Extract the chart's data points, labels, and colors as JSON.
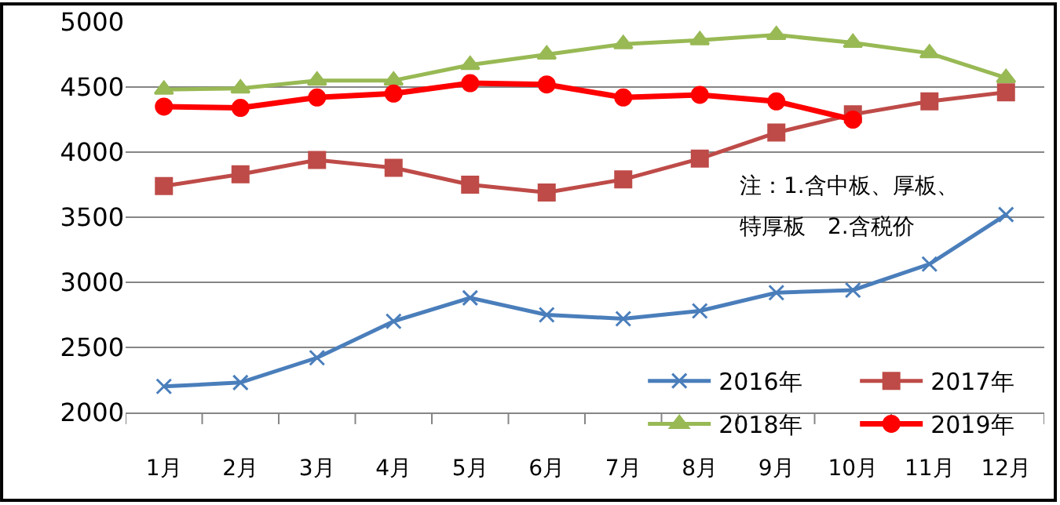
{
  "chart_data": {
    "type": "line",
    "categories": [
      "1月",
      "2月",
      "3月",
      "4月",
      "5月",
      "6月",
      "7月",
      "8月",
      "9月",
      "10月",
      "11月",
      "12月"
    ],
    "series": [
      {
        "name": "2016年",
        "color": "#4a7ebb",
        "marker": "cross",
        "values": [
          2200,
          2230,
          2420,
          2700,
          2880,
          2750,
          2720,
          2780,
          2920,
          2940,
          3140,
          3520
        ]
      },
      {
        "name": "2017年",
        "color": "#be4b48",
        "marker": "square",
        "values": [
          3740,
          3830,
          3940,
          3880,
          3750,
          3690,
          3790,
          3950,
          4150,
          4290,
          4390,
          4460
        ]
      },
      {
        "name": "2018年",
        "color": "#98b954",
        "marker": "triangle",
        "values": [
          4480,
          4490,
          4550,
          4550,
          4670,
          4750,
          4830,
          4860,
          4900,
          4840,
          4760,
          4570
        ]
      },
      {
        "name": "2019年",
        "color": "#ff0000",
        "marker": "circle",
        "values": [
          4350,
          4340,
          4420,
          4450,
          4530,
          4520,
          4420,
          4440,
          4390,
          4250,
          null,
          null
        ]
      }
    ],
    "ylim": [
      2000,
      5000
    ],
    "yticks": [
      2000,
      2500,
      3000,
      3500,
      4000,
      4500,
      5000
    ],
    "grid": "y",
    "legend": "bottom right",
    "annotations": [
      "注：1.含中板、厚板、",
      "特厚板　2.含税价"
    ]
  }
}
